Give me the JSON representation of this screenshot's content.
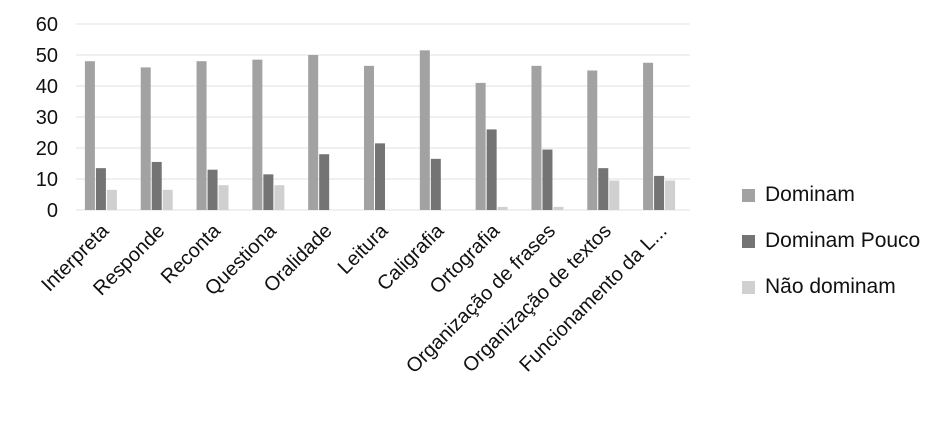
{
  "chart_data": {
    "type": "bar",
    "categories": [
      "Interpreta",
      "Responde",
      "Reconta",
      "Questiona",
      "Oralidade",
      "Leitura",
      "Caligrafia",
      "Ortografia",
      "Organização de frases",
      "Organização de textos",
      "Funcionamento da L..."
    ],
    "series": [
      {
        "name": "Dominam",
        "values": [
          48,
          46,
          48,
          48.5,
          50,
          46.5,
          51.5,
          41,
          46.5,
          45,
          47.5
        ]
      },
      {
        "name": "Dominam Pouco",
        "values": [
          13.5,
          15.5,
          13,
          11.5,
          18,
          21.5,
          16.5,
          26,
          19.5,
          13.5,
          11
        ]
      },
      {
        "name": "Não dominam",
        "values": [
          6.5,
          6.5,
          8,
          8,
          0,
          0,
          0,
          1,
          1,
          9.5,
          9.5
        ]
      }
    ],
    "colors": [
      "#a2a2a2",
      "#747474",
      "#d0d0d0"
    ],
    "ylim": [
      0,
      60
    ],
    "yticks": [
      0,
      10,
      20,
      30,
      40,
      50,
      60
    ],
    "grid": true,
    "legend_position": "right"
  }
}
